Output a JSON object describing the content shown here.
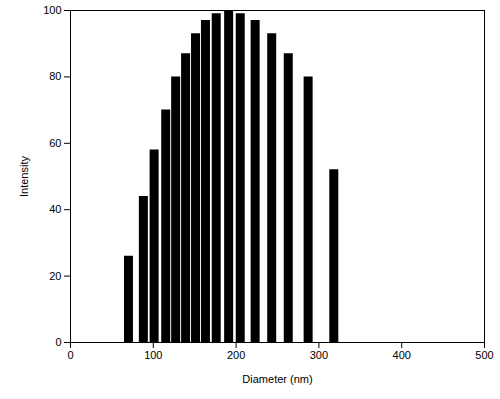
{
  "chart_data": {
    "type": "bar",
    "x_label": "Diameter (nm)",
    "y_label": "Intensity",
    "x": [
      70,
      88,
      101,
      115,
      127,
      139,
      151,
      163,
      176,
      191,
      205,
      223,
      243,
      263,
      287,
      318
    ],
    "values": [
      26,
      44,
      58,
      70,
      80,
      87,
      93,
      97,
      99,
      100,
      99,
      97,
      93,
      87,
      80,
      52
    ],
    "color": "#000000",
    "xlim": [
      0,
      500
    ],
    "xticks": [
      0,
      100,
      200,
      300,
      400,
      500
    ],
    "ylim": [
      0,
      100
    ],
    "yticks": [
      0,
      20,
      40,
      60,
      80,
      100
    ],
    "grid": false
  }
}
